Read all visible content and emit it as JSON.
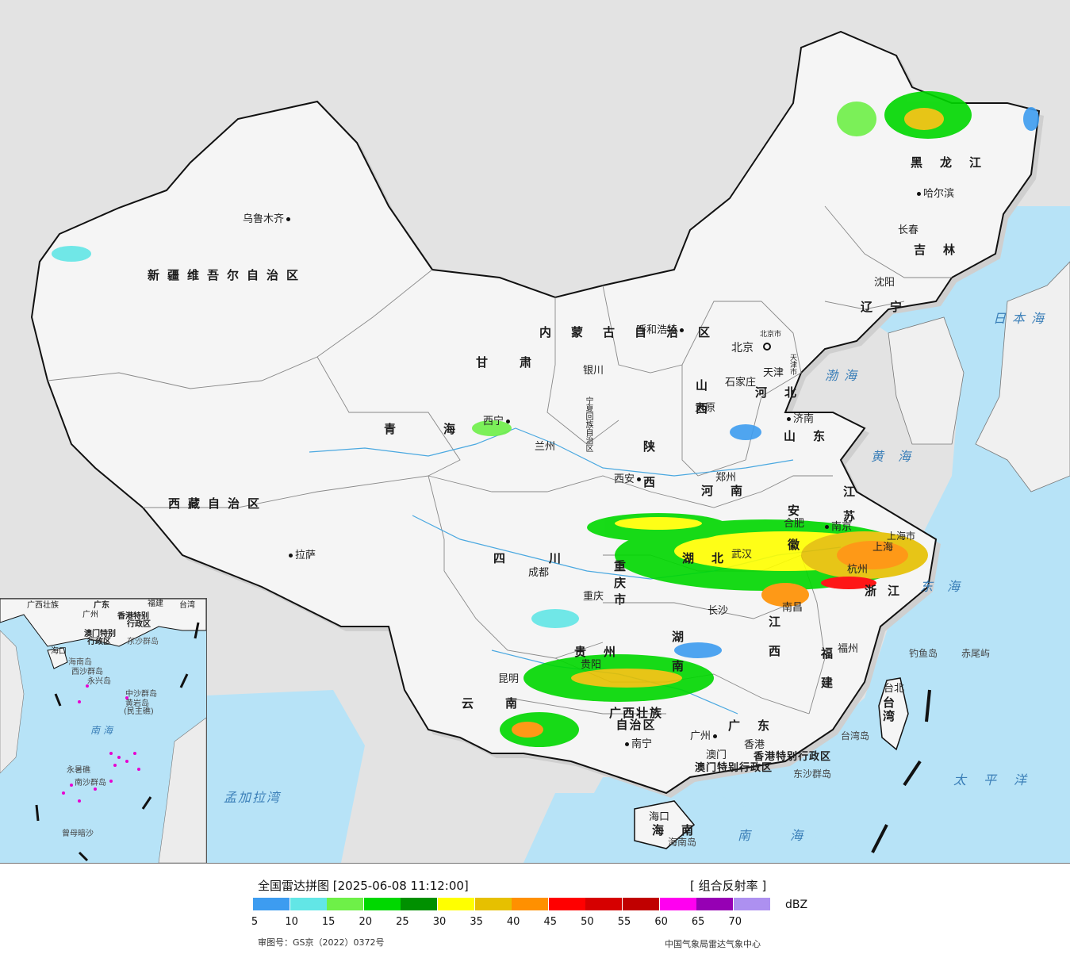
{
  "map": {
    "provinces": [
      {
        "name": "新疆维吾尔自治区"
      },
      {
        "name": "西藏自治区"
      },
      {
        "name": "青海"
      },
      {
        "name": "甘肃"
      },
      {
        "name": "四川"
      },
      {
        "name": "云南"
      },
      {
        "name": "内蒙古自治区"
      },
      {
        "name": "黑龙江"
      },
      {
        "name": "吉林"
      },
      {
        "name": "辽宁"
      },
      {
        "name": "河北"
      },
      {
        "name": "山西"
      },
      {
        "name": "山东"
      },
      {
        "name": "河南"
      },
      {
        "name": "陕西"
      },
      {
        "name": "宁夏回族自治区"
      },
      {
        "name": "湖北"
      },
      {
        "name": "湖南"
      },
      {
        "name": "重庆市"
      },
      {
        "name": "贵州"
      },
      {
        "name": "广西壮族自治区"
      },
      {
        "name": "广东"
      },
      {
        "name": "海南"
      },
      {
        "name": "江西"
      },
      {
        "name": "福建"
      },
      {
        "name": "浙江"
      },
      {
        "name": "安徽"
      },
      {
        "name": "江苏"
      },
      {
        "name": "上海市"
      },
      {
        "name": "北京市"
      },
      {
        "name": "天津市"
      },
      {
        "name": "台湾"
      },
      {
        "name": "香港特别行政区"
      },
      {
        "name": "澳门特别行政区"
      }
    ],
    "cities": [
      "乌鲁木齐",
      "拉萨",
      "西宁",
      "兰州",
      "银川",
      "呼和浩特",
      "哈尔滨",
      "长春",
      "沈阳",
      "北京",
      "天津",
      "石家庄",
      "太原",
      "济南",
      "郑州",
      "西安",
      "成都",
      "重庆",
      "贵阳",
      "昆明",
      "南宁",
      "长沙",
      "武汉",
      "合肥",
      "南京",
      "上海",
      "杭州",
      "南昌",
      "福州",
      "台北",
      "广州",
      "香港",
      "澳门",
      "海口"
    ],
    "seas": [
      "日本海",
      "渤海",
      "黄海",
      "东海",
      "太平洋",
      "南海",
      "孟加拉湾"
    ],
    "islands": [
      "钓鱼岛",
      "赤尾屿",
      "台湾岛",
      "东沙群岛",
      "海南岛"
    ],
    "inset": {
      "labels": [
        "广西壮族",
        "广东",
        "福建",
        "台湾",
        "广州",
        "香港特别",
        "行政区",
        "澳门特别",
        "行政区",
        "东沙群岛",
        "海口",
        "海南岛",
        "西沙群岛",
        "永兴岛",
        "中沙群岛",
        "黄岩岛",
        "(民主礁)",
        "南海",
        "永暑礁",
        "南沙群岛",
        "曾母暗沙"
      ]
    }
  },
  "legend": {
    "title": "全国雷达拼图 [2025-06-08 11:12:00]",
    "product": "[ 组合反射率 ]",
    "unit": "dBZ",
    "colors": [
      "#3d9cf0",
      "#62e6e6",
      "#6ef048",
      "#00d800",
      "#009000",
      "#ffff00",
      "#e6c000",
      "#ff9000",
      "#ff0000",
      "#d60000",
      "#c00000",
      "#ff00f0",
      "#9600b4",
      "#ad90f0"
    ],
    "ticks": [
      "5",
      "10",
      "15",
      "20",
      "25",
      "30",
      "35",
      "40",
      "45",
      "50",
      "55",
      "60",
      "65",
      "70"
    ]
  },
  "footer": {
    "approval": "审图号：GS京（2022）0372号",
    "credit": "中国气象局雷达气象中心"
  }
}
